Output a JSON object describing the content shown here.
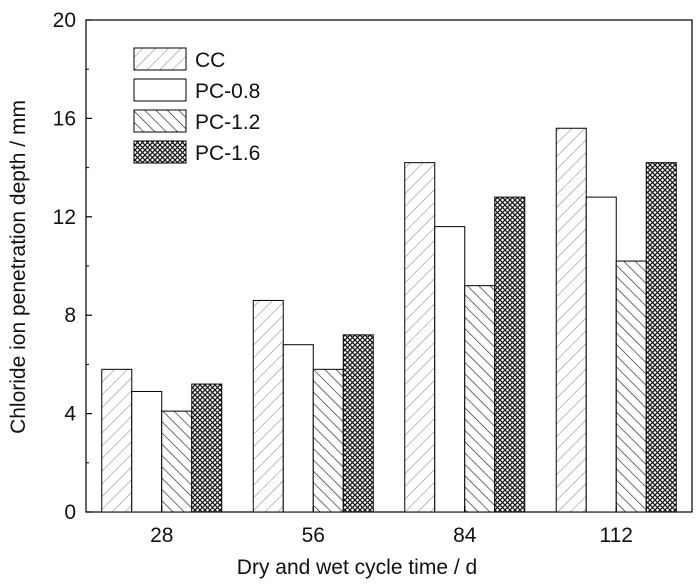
{
  "chart_data": {
    "type": "bar",
    "title": "",
    "xlabel": "Dry and wet cycle time / d",
    "ylabel": "Chloride ion penetration depth / mm",
    "categories": [
      "28",
      "56",
      "84",
      "112"
    ],
    "ylim": [
      0,
      20
    ],
    "yticks": [
      0,
      4,
      8,
      12,
      16,
      20
    ],
    "grid": false,
    "legend_position": "top-left",
    "series": [
      {
        "name": "CC",
        "pattern": "diagonal-light",
        "values": [
          5.8,
          8.6,
          14.2,
          15.6
        ]
      },
      {
        "name": "PC-0.8",
        "pattern": "solid-white",
        "values": [
          4.9,
          6.8,
          11.6,
          12.8
        ]
      },
      {
        "name": "PC-1.2",
        "pattern": "back-diagonal",
        "values": [
          4.1,
          5.8,
          9.2,
          10.2
        ]
      },
      {
        "name": "PC-1.6",
        "pattern": "crosshatch",
        "values": [
          5.2,
          7.2,
          12.8,
          14.2
        ]
      }
    ]
  }
}
